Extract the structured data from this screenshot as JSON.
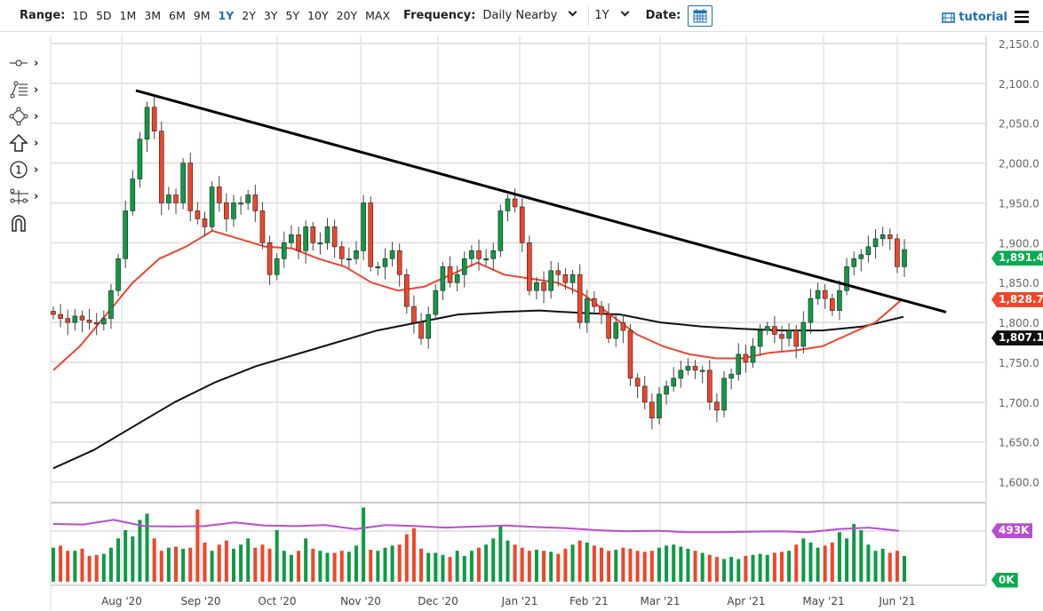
{
  "toolbar": {
    "range_label": "Range:",
    "ranges": [
      "1D",
      "5D",
      "1M",
      "3M",
      "6M",
      "9M",
      "1Y",
      "2Y",
      "3Y",
      "5Y",
      "10Y",
      "20Y",
      "MAX"
    ],
    "active_range": "1Y",
    "frequency_label": "Frequency:",
    "frequency_value": "Daily Nearby",
    "period_value": "1Y",
    "date_label": "Date:",
    "tutorial_label": "tutorial"
  },
  "tools": [
    "crosshair-icon",
    "fibonacci-icon",
    "shape-icon",
    "arrow-up-icon",
    "numbered-marker-icon",
    "measure-icon",
    "magnet-icon"
  ],
  "colors": {
    "up": "#0e9a45",
    "down": "#f0452a",
    "ma50": "#f0452a",
    "ma200": "#111111",
    "trendline": "#000000",
    "volume_avg": "#b84ed0",
    "accent": "#1f6fb5"
  },
  "chart_data": {
    "type": "candlestick",
    "ylim": [
      1575,
      2160
    ],
    "y_ticks": [
      "2,150.0",
      "2,100.0",
      "2,050.0",
      "2,000.0",
      "1,950.0",
      "1,900.0",
      "1,850.0",
      "1,800.0",
      "1,750.0",
      "1,700.0",
      "1,650.0",
      "1,600.0"
    ],
    "y_tick_values": [
      2150,
      2100,
      2050,
      2000,
      1950,
      1900,
      1850,
      1800,
      1750,
      1700,
      1650,
      1600
    ],
    "x_ticks": [
      "Aug '20",
      "Sep '20",
      "Oct '20",
      "Nov '20",
      "Dec '20",
      "Jan '21",
      "Feb '21",
      "Mar '21",
      "Apr '21",
      "May '21",
      "Jun '21"
    ],
    "closes": [
      1810,
      1805,
      1800,
      1808,
      1803,
      1800,
      1798,
      1805,
      1840,
      1880,
      1940,
      1980,
      2030,
      2070,
      2040,
      1950,
      1960,
      1950,
      2000,
      1940,
      1930,
      1920,
      1970,
      1950,
      1930,
      1950,
      1950,
      1960,
      1940,
      1900,
      1860,
      1880,
      1900,
      1910,
      1890,
      1920,
      1900,
      1900,
      1920,
      1895,
      1880,
      1880,
      1890,
      1950,
      1870,
      1870,
      1880,
      1890,
      1860,
      1820,
      1800,
      1780,
      1810,
      1840,
      1870,
      1850,
      1860,
      1880,
      1890,
      1880,
      1880,
      1890,
      1940,
      1955,
      1945,
      1900,
      1840,
      1850,
      1840,
      1865,
      1860,
      1850,
      1860,
      1800,
      1830,
      1820,
      1810,
      1780,
      1800,
      1790,
      1730,
      1720,
      1700,
      1680,
      1710,
      1720,
      1730,
      1740,
      1745,
      1740,
      1740,
      1700,
      1690,
      1730,
      1735,
      1760,
      1750,
      1770,
      1790,
      1795,
      1785,
      1780,
      1790,
      1770,
      1800,
      1830,
      1840,
      1830,
      1815,
      1840,
      1870,
      1880,
      1885,
      1895,
      1905,
      1910,
      1905,
      1870,
      1891.4
    ],
    "ma50": [
      1740,
      1770,
      1810,
      1850,
      1880,
      1895,
      1915,
      1905,
      1895,
      1893,
      1880,
      1870,
      1850,
      1840,
      1845,
      1860,
      1875,
      1860,
      1855,
      1850,
      1835,
      1810,
      1785,
      1770,
      1760,
      1755,
      1755,
      1762,
      1765,
      1770,
      1785,
      1800,
      1828.7
    ],
    "ma200": [
      1617,
      1640,
      1670,
      1700,
      1725,
      1745,
      1760,
      1775,
      1790,
      1800,
      1810,
      1813,
      1815,
      1812,
      1810,
      1800,
      1795,
      1792,
      1790,
      1790,
      1795,
      1807.1
    ],
    "trendline": {
      "start": 2091,
      "end": 1813
    },
    "last_price": "1,891.4",
    "ma50_last": "1,828.7",
    "ma200_last": "1,807.1",
    "volume_k": [
      330,
      350,
      300,
      300,
      320,
      250,
      260,
      270,
      330,
      420,
      500,
      440,
      600,
      660,
      420,
      300,
      330,
      340,
      320,
      330,
      700,
      380,
      300,
      360,
      400,
      320,
      360,
      420,
      330,
      360,
      320,
      500,
      300,
      260,
      300,
      420,
      320,
      300,
      280,
      280,
      300,
      290,
      350,
      720,
      310,
      300,
      330,
      350,
      360,
      460,
      520,
      320,
      280,
      280,
      260,
      240,
      300,
      250,
      300,
      330,
      360,
      420,
      540,
      400,
      360,
      330,
      300,
      310,
      300,
      290,
      270,
      320,
      360,
      400,
      380,
      350,
      330,
      300,
      310,
      330,
      320,
      300,
      290,
      300,
      330,
      350,
      360,
      340,
      320,
      300,
      280,
      260,
      240,
      220,
      240,
      220,
      250,
      260,
      270,
      260,
      280,
      290,
      300,
      360,
      420,
      380,
      330,
      350,
      380,
      480,
      420,
      560,
      500,
      360,
      300,
      320,
      280,
      300,
      250
    ],
    "volume_avg_k": [
      560,
      555,
      600,
      540,
      535,
      540,
      575,
      545,
      540,
      550,
      510,
      550,
      540,
      525,
      535,
      545,
      530,
      520,
      500,
      490,
      495,
      480,
      480,
      485,
      490,
      480,
      510,
      525,
      493
    ],
    "volume_ylim": [
      0,
      750
    ],
    "volume_avg_last": "493K",
    "volume_zero": "0K"
  }
}
